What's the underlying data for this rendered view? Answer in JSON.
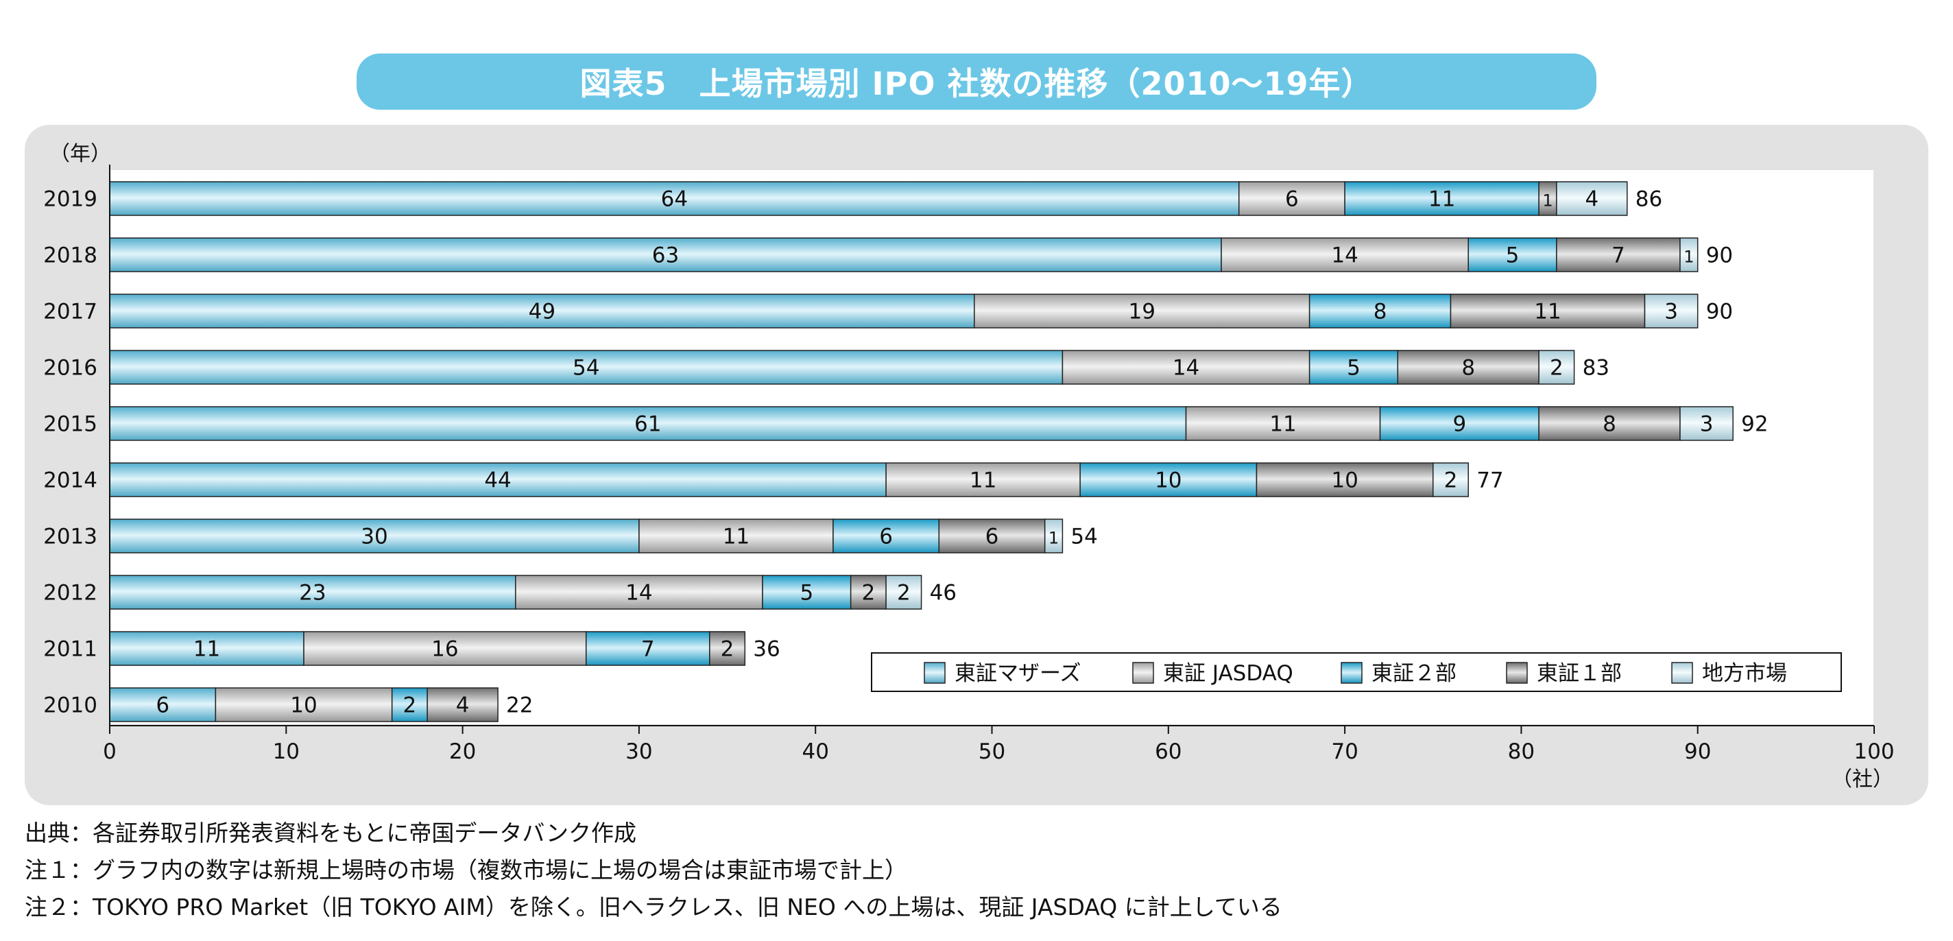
{
  "title": "図表5　上場市場別 IPO 社数の推移（2010〜19年）",
  "chart_data": {
    "type": "bar",
    "orientation": "horizontal",
    "stacked": true,
    "y_unit_label": "（年）",
    "x_unit_label": "（社）",
    "xlim": [
      0,
      100
    ],
    "x_ticks": [
      0,
      10,
      20,
      30,
      40,
      50,
      60,
      70,
      80,
      90,
      100
    ],
    "categories": [
      "2019",
      "2018",
      "2017",
      "2016",
      "2015",
      "2014",
      "2013",
      "2012",
      "2011",
      "2010"
    ],
    "series": [
      {
        "name": "東証マザーズ",
        "color": "#5ec6ea",
        "values": [
          64,
          63,
          49,
          54,
          61,
          44,
          30,
          23,
          11,
          6
        ]
      },
      {
        "name": "東証 JASDAQ",
        "color": "#b5b5b6",
        "values": [
          6,
          14,
          19,
          14,
          11,
          11,
          11,
          14,
          16,
          10
        ]
      },
      {
        "name": "東証２部",
        "color": "#1fb0e2",
        "values": [
          11,
          5,
          8,
          5,
          9,
          10,
          6,
          5,
          7,
          2
        ]
      },
      {
        "name": "東証１部",
        "color": "#7d7d7e",
        "values": [
          1,
          7,
          11,
          8,
          8,
          10,
          6,
          2,
          2,
          4
        ]
      },
      {
        "name": "地方市場",
        "color": "#bfe7f6",
        "values": [
          4,
          1,
          3,
          2,
          3,
          2,
          1,
          2,
          0,
          0
        ]
      }
    ],
    "totals": [
      86,
      90,
      90,
      83,
      92,
      77,
      54,
      46,
      36,
      22
    ],
    "grid": false,
    "legend_position": "inside-bottom-right"
  },
  "notes": [
    "出典：各証券取引所発表資料をもとに帝国データバンク作成",
    "注１：グラフ内の数字は新規上場時の市場（複数市場に上場の場合は東証市場で計上）",
    "注２：TOKYO PRO Market（旧 TOKYO AIM）を除く。旧ヘラクレス、旧 NEO への上場は、現証 JASDAQ に計上している"
  ]
}
